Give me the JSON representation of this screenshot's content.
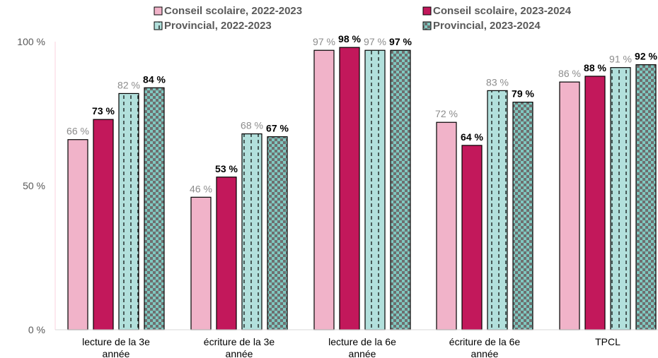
{
  "chart_data": {
    "type": "bar",
    "categories": [
      [
        "lecture de la 3e",
        "année"
      ],
      [
        "écriture  de la 3e",
        "année"
      ],
      [
        "lecture de la 6e",
        "année"
      ],
      [
        "écriture  de la 6e",
        "année"
      ],
      [
        "TPCL"
      ]
    ],
    "series": [
      {
        "name": "Conseil scolaire, 2022-2023",
        "values": [
          66,
          46,
          97,
          72,
          86
        ],
        "labels": [
          "66 %",
          "46 %",
          "97 %",
          "72 %",
          "86 %"
        ],
        "color": "#f1b3c9",
        "pattern": "solid",
        "label_style": "muted"
      },
      {
        "name": "Conseil scolaire, 2023-2024",
        "values": [
          73,
          53,
          98,
          64,
          88
        ],
        "labels": [
          "73 %",
          "53 %",
          "98 %",
          "64 %",
          "88 %"
        ],
        "color": "#c2185b",
        "pattern": "solid",
        "label_style": "bold"
      },
      {
        "name": "Provincial, 2022-2023",
        "values": [
          82,
          68,
          97,
          83,
          91
        ],
        "labels": [
          "82 %",
          "68 %",
          "97 %",
          "83 %",
          "91 %"
        ],
        "color": "#b2e0dc",
        "pattern": "dashed",
        "label_style": "muted"
      },
      {
        "name": "Provincial, 2023-2024",
        "values": [
          84,
          67,
          97,
          79,
          92
        ],
        "labels": [
          "84 %",
          "67 %",
          "97 %",
          "79 %",
          "92 %"
        ],
        "color": "#7fc8c0",
        "pattern": "checker",
        "label_style": "bold"
      }
    ],
    "yticks": [
      "0 %",
      "50 %",
      "100 %"
    ],
    "ylim": [
      0,
      100
    ],
    "legend_position": "top",
    "grid": false
  }
}
